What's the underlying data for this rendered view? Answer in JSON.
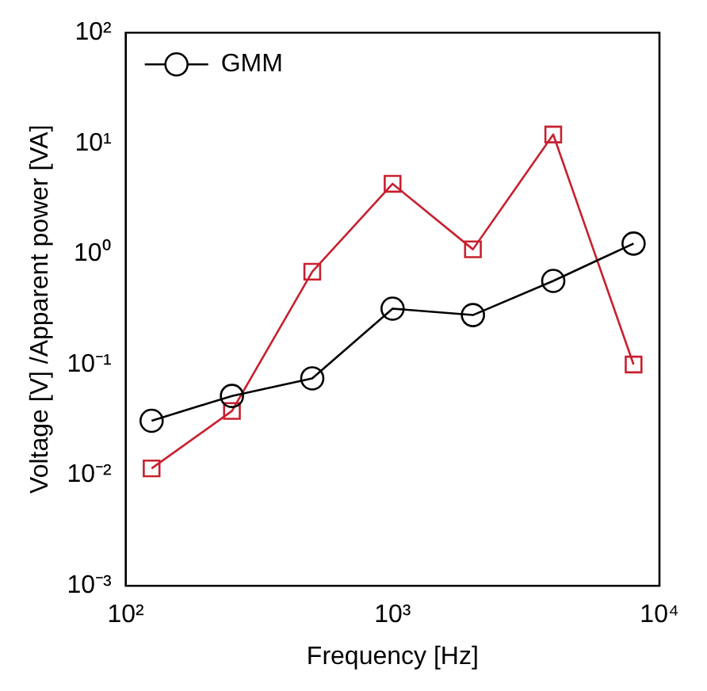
{
  "chart_data": {
    "type": "line",
    "xlabel": "Frequency [Hz]",
    "ylabel": "Voltage [V] /Apparent power [VA]",
    "x": [
      125,
      250,
      500,
      1000,
      2000,
      4000,
      8000
    ],
    "series": [
      {
        "name": "GMM",
        "color": "#000000",
        "marker": "circle",
        "values": [
          0.031,
          0.052,
          0.075,
          0.32,
          0.28,
          0.57,
          1.24
        ]
      },
      {
        "color": "#c8202f",
        "marker": "square",
        "values": [
          0.0115,
          0.038,
          0.69,
          4.3,
          1.1,
          12,
          0.1
        ]
      }
    ],
    "log": "xy",
    "xlim": [
      100,
      10000
    ],
    "ylim": [
      0.001,
      100
    ],
    "xticks": [
      {
        "value": 100,
        "label": "10²"
      },
      {
        "value": 1000,
        "label": "10³"
      },
      {
        "value": 10000,
        "label": "10⁴"
      }
    ],
    "yticks": [
      {
        "value": 0.001,
        "label": "10⁻³"
      },
      {
        "value": 0.01,
        "label": "10⁻²"
      },
      {
        "value": 0.1,
        "label": "10⁻¹"
      },
      {
        "value": 1,
        "label": "10⁰"
      },
      {
        "value": 10,
        "label": "10¹"
      },
      {
        "value": 100,
        "label": "10²"
      }
    ],
    "grid": false,
    "legend": "top left"
  }
}
